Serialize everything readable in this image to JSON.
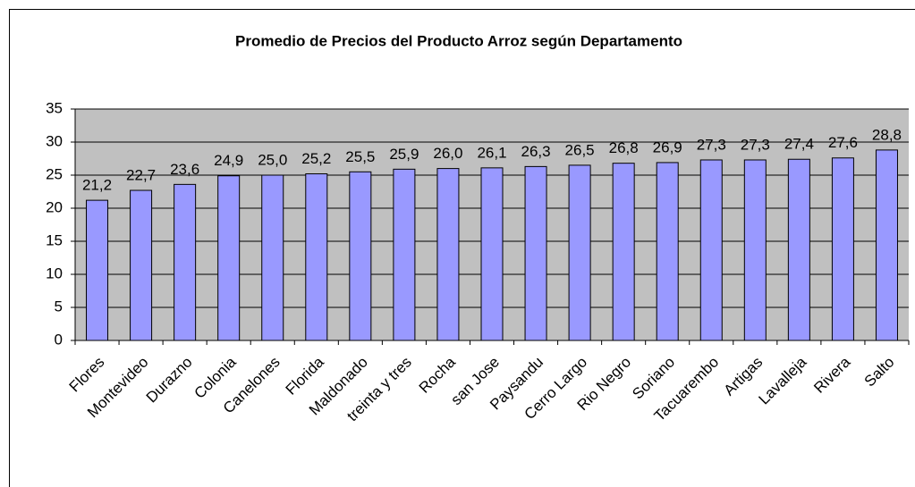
{
  "chart_data": {
    "type": "bar",
    "title": "Promedio de Precios del Producto Arroz según Departamento",
    "categories": [
      "Flores",
      "Montevideo",
      "Durazno",
      "Colonia",
      "Canelones",
      "Florida",
      "Maldonado",
      "treinta y tres",
      "Rocha",
      "san Jose",
      "Paysandu",
      "Cerro Largo",
      "Rio Negro",
      "Soriano",
      "Tacuarembo",
      "Artigas",
      "Lavalleja",
      "Rivera",
      "Salto"
    ],
    "values": [
      21.2,
      22.7,
      23.6,
      24.9,
      25.0,
      25.2,
      25.5,
      25.9,
      26.0,
      26.1,
      26.3,
      26.5,
      26.8,
      26.9,
      27.3,
      27.3,
      27.4,
      27.6,
      28.8
    ],
    "value_labels": [
      "21,2",
      "22,7",
      "23,6",
      "24,9",
      "25,0",
      "25,2",
      "25,5",
      "25,9",
      "26,0",
      "26,1",
      "26,3",
      "26,5",
      "26,8",
      "26,9",
      "27,3",
      "27,3",
      "27,4",
      "27,6",
      "28,8"
    ],
    "color": "#9999ff",
    "background": "#c0c0c0",
    "ylim": [
      0,
      35
    ],
    "yticks": [
      0,
      5,
      10,
      15,
      20,
      25,
      30,
      35
    ],
    "grid": true
  }
}
